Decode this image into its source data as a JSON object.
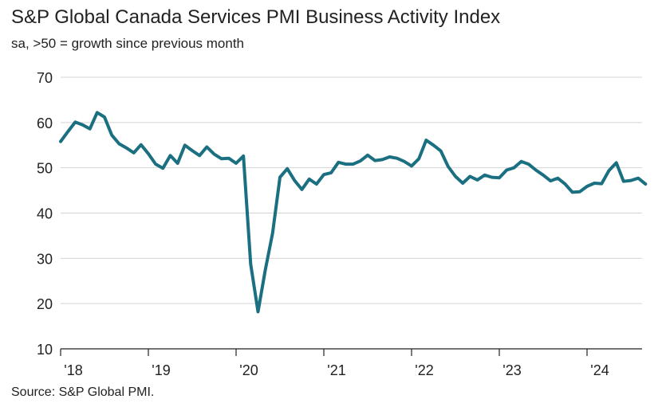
{
  "chart_data": {
    "type": "line",
    "title": "S&P Global Canada Services PMI Business Activity Index",
    "subtitle": "sa, >50 = growth since previous month",
    "source": "Source: S&P Global PMI.",
    "xlabel": "",
    "ylabel": "",
    "ylim": [
      10,
      70
    ],
    "yticks": [
      "70",
      "60",
      "50",
      "40",
      "30",
      "20",
      "10"
    ],
    "xticks": [
      "'18",
      "'19",
      "'20",
      "'21",
      "'22",
      "'23",
      "'24"
    ],
    "grid": true,
    "line_color": "#1a6f80",
    "series": [
      {
        "name": "Services PMI Business Activity Index",
        "start": "2018-01",
        "values": [
          55.8,
          58.0,
          60.1,
          59.5,
          58.6,
          62.2,
          61.2,
          57.2,
          55.3,
          54.4,
          53.3,
          55.1,
          53.1,
          50.8,
          49.9,
          52.7,
          51.0,
          55.0,
          53.8,
          52.7,
          54.6,
          53.0,
          52.0,
          52.1,
          51.0,
          52.6,
          28.7,
          18.2,
          27.5,
          35.6,
          47.9,
          49.8,
          47.2,
          45.2,
          47.5,
          46.4,
          48.5,
          48.9,
          51.2,
          50.8,
          50.8,
          51.5,
          52.8,
          51.6,
          51.8,
          52.4,
          52.1,
          51.4,
          50.4,
          52.0,
          56.1,
          55.0,
          53.7,
          50.3,
          48.1,
          46.6,
          48.1,
          47.3,
          48.4,
          47.9,
          47.8,
          49.5,
          50.0,
          51.4,
          50.8,
          49.5,
          48.4,
          47.1,
          47.7,
          46.4,
          44.6,
          44.7,
          45.9,
          46.6,
          46.5,
          49.4,
          51.1,
          47.0,
          47.2,
          47.7,
          46.4
        ]
      }
    ]
  }
}
